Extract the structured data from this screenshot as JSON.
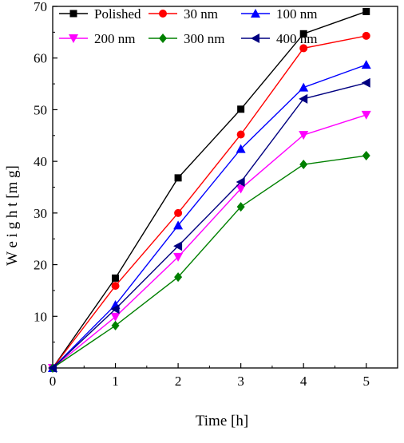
{
  "chart_data": {
    "type": "line",
    "xlabel": "Time [h]",
    "ylabel": "W e i g h t  [m g]",
    "xlim": [
      0,
      5.5
    ],
    "ylim": [
      0,
      70
    ],
    "x_ticks": [
      0,
      1,
      2,
      3,
      4,
      5
    ],
    "y_ticks": [
      0,
      10,
      20,
      30,
      40,
      50,
      60,
      70
    ],
    "x": [
      0,
      1,
      2,
      3,
      4,
      5
    ],
    "grid": false,
    "legend_position": "top",
    "series": [
      {
        "name": "Polished",
        "color": "#000000",
        "marker": "square",
        "values": [
          0,
          17.4,
          36.8,
          50.1,
          64.7,
          69.0
        ]
      },
      {
        "name": "30 nm",
        "color": "#ff0000",
        "marker": "circle",
        "values": [
          0,
          15.9,
          30.0,
          45.2,
          61.9,
          64.3
        ]
      },
      {
        "name": "100 nm",
        "color": "#0000ff",
        "marker": "triangle-up",
        "values": [
          0,
          12.2,
          27.6,
          42.4,
          54.3,
          58.7
        ]
      },
      {
        "name": "200 nm",
        "color": "#ff00ff",
        "marker": "triangle-down",
        "values": [
          0,
          9.9,
          21.5,
          34.7,
          45.1,
          49.0
        ]
      },
      {
        "name": "300 nm",
        "color": "#008000",
        "marker": "diamond",
        "values": [
          0,
          8.2,
          17.6,
          31.2,
          39.4,
          41.1
        ]
      },
      {
        "name": "400 nm",
        "color": "#000080",
        "marker": "triangle-left",
        "values": [
          0,
          11.4,
          23.6,
          36.0,
          52.1,
          55.2
        ]
      }
    ]
  }
}
